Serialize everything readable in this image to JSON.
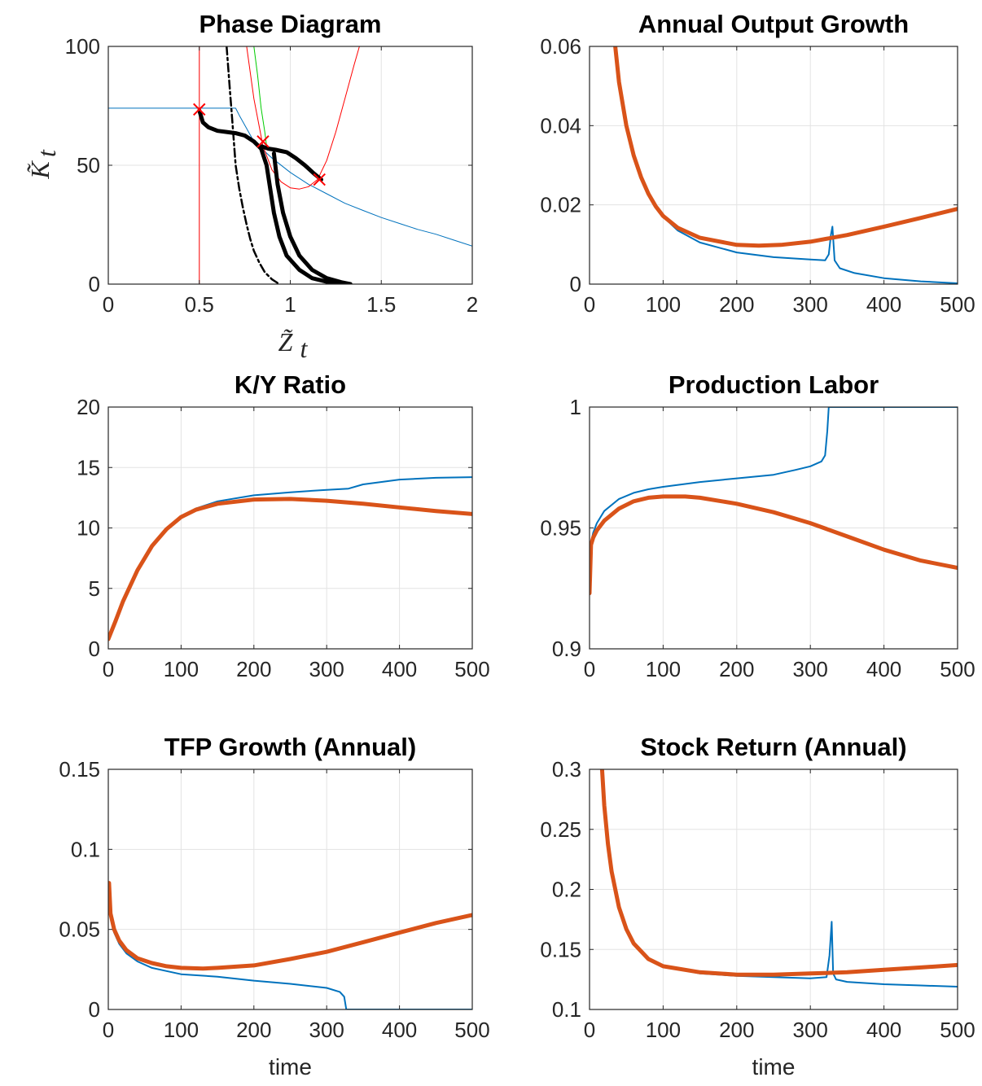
{
  "chart_data": [
    {
      "type": "line",
      "title": "Phase Diagram",
      "xlabel": "Z̃",
      "xlabel_sub": "t",
      "ylabel": "K̃",
      "ylabel_sub": "t",
      "xlim": [
        0,
        2
      ],
      "ylim": [
        0,
        100
      ],
      "xticks": [
        0,
        0.5,
        1,
        1.5,
        2
      ],
      "xtick_labels": [
        "0",
        "0.5",
        "1",
        "1.5",
        "2"
      ],
      "yticks": [
        0,
        50,
        100
      ],
      "ytick_labels": [
        "0",
        "50",
        "100"
      ],
      "grid": true,
      "series": [
        {
          "color": "#0072BD",
          "width": 1,
          "dash": "",
          "x": [
            0,
            0.2,
            0.4,
            0.5,
            0.6,
            0.7,
            0.72,
            0.8,
            0.9,
            1.0,
            1.1,
            1.2,
            1.3,
            1.4,
            1.5,
            1.6,
            1.7,
            1.8,
            1.9,
            2.0
          ],
          "y": [
            74,
            74,
            74,
            74,
            74,
            74,
            71,
            60,
            53,
            47,
            42,
            38,
            34,
            31,
            28,
            25.5,
            23,
            21,
            18.5,
            16
          ]
        },
        {
          "color": "#ff0000",
          "width": 1,
          "dash": "",
          "x": [
            0.5,
            0.5
          ],
          "y": [
            0,
            100
          ]
        },
        {
          "color": "#ff0000",
          "width": 1,
          "dash": "",
          "x": [
            0.76,
            0.8,
            0.85,
            0.9,
            0.95,
            1.0,
            1.05,
            1.1,
            1.15,
            1.2,
            1.25,
            1.3,
            1.35,
            1.38
          ],
          "y": [
            100,
            78,
            58,
            48,
            43,
            40.5,
            40,
            41,
            44,
            52,
            64,
            78,
            92,
            100
          ]
        },
        {
          "color": "#00cc00",
          "width": 1,
          "dash": "",
          "x": [
            0.8,
            0.82,
            0.84,
            0.86,
            0.87
          ],
          "y": [
            100,
            88,
            74,
            64,
            58
          ]
        },
        {
          "color": "#000000",
          "width": 2.5,
          "dash": "10,4,3,4",
          "x": [
            0.65,
            0.66,
            0.67,
            0.68,
            0.69,
            0.7,
            0.72,
            0.74,
            0.76,
            0.78,
            0.8,
            0.83,
            0.86,
            0.9,
            0.94
          ],
          "y": [
            100,
            90,
            80,
            70,
            60,
            50,
            40,
            32,
            25,
            19,
            14,
            9,
            5,
            2,
            0
          ]
        },
        {
          "color": "#000000",
          "width": 5,
          "dash": "",
          "x": [
            0.5,
            0.52,
            0.55,
            0.6,
            0.65,
            0.7,
            0.75,
            0.8,
            0.84,
            0.87,
            0.89,
            0.91,
            0.94,
            0.98,
            1.05,
            1.12,
            1.2,
            1.28,
            1.33
          ],
          "y": [
            73,
            68,
            66,
            64.5,
            64,
            63.5,
            62.5,
            60,
            57,
            50,
            40,
            30,
            20,
            12,
            6,
            2.5,
            1,
            0.3,
            0
          ]
        },
        {
          "color": "#000000",
          "width": 5,
          "dash": "",
          "x": [
            0.84,
            0.88,
            0.92,
            0.95,
            0.98,
            1.03,
            1.08,
            1.13,
            1.17
          ],
          "y": [
            58,
            57,
            56.5,
            56,
            55.5,
            53,
            50,
            46.5,
            44
          ]
        },
        {
          "color": "#000000",
          "width": 5,
          "dash": "",
          "x": [
            0.91,
            0.93,
            0.96,
            1.0,
            1.05,
            1.12,
            1.2,
            1.28,
            1.33
          ],
          "y": [
            55,
            42,
            30,
            20,
            12,
            6,
            2.5,
            0.8,
            0
          ]
        }
      ],
      "markers": {
        "symbol": "x",
        "color": "#ff0000",
        "x": [
          0.5,
          0.85,
          1.16
        ],
        "y": [
          73.5,
          60,
          44
        ]
      }
    },
    {
      "type": "line",
      "title": "Annual Output Growth",
      "xlim": [
        0,
        500
      ],
      "ylim": [
        0,
        0.06
      ],
      "xticks": [
        0,
        100,
        200,
        300,
        400,
        500
      ],
      "xtick_labels": [
        "0",
        "100",
        "200",
        "300",
        "400",
        "500"
      ],
      "yticks": [
        0,
        0.02,
        0.04,
        0.06
      ],
      "ytick_labels": [
        "0",
        "0.02",
        "0.04",
        "0.06"
      ],
      "grid": true,
      "series": [
        {
          "color": "#0072BD",
          "width": 2,
          "x": [
            35,
            40,
            50,
            60,
            70,
            80,
            90,
            100,
            120,
            150,
            200,
            250,
            300,
            320,
            325,
            328,
            330,
            333,
            340,
            360,
            400,
            450,
            500
          ],
          "y": [
            0.06,
            0.051,
            0.04,
            0.0325,
            0.027,
            0.0228,
            0.0195,
            0.017,
            0.0135,
            0.0105,
            0.008,
            0.0068,
            0.0062,
            0.006,
            0.0075,
            0.0125,
            0.0145,
            0.006,
            0.004,
            0.0028,
            0.0015,
            0.0007,
            0.0002
          ]
        },
        {
          "color": "#D95319",
          "width": 5,
          "x": [
            35,
            40,
            50,
            60,
            70,
            80,
            90,
            100,
            120,
            150,
            200,
            230,
            260,
            300,
            350,
            400,
            450,
            500
          ],
          "y": [
            0.06,
            0.051,
            0.04,
            0.0325,
            0.027,
            0.0228,
            0.0196,
            0.0172,
            0.0142,
            0.0117,
            0.0099,
            0.0097,
            0.0099,
            0.0107,
            0.0124,
            0.0145,
            0.0167,
            0.019
          ]
        }
      ]
    },
    {
      "type": "line",
      "title": "K/Y Ratio",
      "xlim": [
        0,
        500
      ],
      "ylim": [
        0,
        20
      ],
      "xticks": [
        0,
        100,
        200,
        300,
        400,
        500
      ],
      "xtick_labels": [
        "0",
        "100",
        "200",
        "300",
        "400",
        "500"
      ],
      "yticks": [
        0,
        5,
        10,
        15,
        20
      ],
      "ytick_labels": [
        "0",
        "5",
        "10",
        "15",
        "20"
      ],
      "grid": true,
      "series": [
        {
          "color": "#0072BD",
          "width": 2,
          "x": [
            0,
            10,
            20,
            40,
            60,
            80,
            100,
            120,
            150,
            200,
            250,
            300,
            330,
            350,
            400,
            450,
            500
          ],
          "y": [
            0.8,
            2.3,
            3.9,
            6.5,
            8.5,
            9.9,
            10.9,
            11.6,
            12.2,
            12.7,
            12.95,
            13.15,
            13.25,
            13.6,
            14,
            14.15,
            14.2
          ]
        },
        {
          "color": "#D95319",
          "width": 5,
          "x": [
            0,
            10,
            20,
            40,
            60,
            80,
            100,
            120,
            150,
            200,
            250,
            300,
            350,
            400,
            450,
            500
          ],
          "y": [
            0.8,
            2.3,
            3.9,
            6.5,
            8.5,
            9.9,
            10.9,
            11.5,
            12.0,
            12.35,
            12.4,
            12.25,
            12.0,
            11.7,
            11.4,
            11.15
          ]
        }
      ]
    },
    {
      "type": "line",
      "title": "Production Labor",
      "xlim": [
        0,
        500
      ],
      "ylim": [
        0.9,
        1
      ],
      "xticks": [
        0,
        100,
        200,
        300,
        400,
        500
      ],
      "xtick_labels": [
        "0",
        "100",
        "200",
        "300",
        "400",
        "500"
      ],
      "yticks": [
        0.9,
        0.95,
        1
      ],
      "ytick_labels": [
        "0.9",
        "0.95",
        "1"
      ],
      "grid": true,
      "series": [
        {
          "color": "#0072BD",
          "width": 2,
          "x": [
            0,
            2,
            5,
            10,
            20,
            40,
            60,
            80,
            100,
            150,
            200,
            250,
            280,
            300,
            315,
            320,
            323,
            325,
            327,
            400,
            500
          ],
          "y": [
            0.924,
            0.944,
            0.948,
            0.952,
            0.957,
            0.962,
            0.9645,
            0.966,
            0.967,
            0.969,
            0.9705,
            0.972,
            0.974,
            0.9755,
            0.9775,
            0.98,
            0.99,
            1.0,
            1.0,
            1.0,
            1.0
          ]
        },
        {
          "color": "#D95319",
          "width": 5,
          "x": [
            0,
            2,
            5,
            10,
            20,
            40,
            60,
            80,
            100,
            130,
            150,
            200,
            250,
            300,
            350,
            400,
            450,
            500
          ],
          "y": [
            0.923,
            0.943,
            0.946,
            0.949,
            0.953,
            0.958,
            0.961,
            0.9625,
            0.963,
            0.963,
            0.9625,
            0.96,
            0.9565,
            0.952,
            0.9465,
            0.941,
            0.9365,
            0.9335
          ]
        }
      ]
    },
    {
      "type": "line",
      "title": "TFP Growth (Annual)",
      "xlabel": "time",
      "xlim": [
        0,
        500
      ],
      "ylim": [
        0,
        0.15
      ],
      "xticks": [
        0,
        100,
        200,
        300,
        400,
        500
      ],
      "xtick_labels": [
        "0",
        "100",
        "200",
        "300",
        "400",
        "500"
      ],
      "yticks": [
        0,
        0.05,
        0.1,
        0.15
      ],
      "ytick_labels": [
        "0",
        "0.05",
        "0.1",
        "0.15"
      ],
      "grid": true,
      "series": [
        {
          "color": "#0072BD",
          "width": 2,
          "x": [
            1,
            3,
            8,
            15,
            25,
            40,
            60,
            80,
            100,
            150,
            200,
            250,
            300,
            318,
            324,
            327,
            330,
            400,
            500
          ],
          "y": [
            0.075,
            0.058,
            0.048,
            0.041,
            0.035,
            0.03,
            0.026,
            0.024,
            0.022,
            0.0205,
            0.018,
            0.016,
            0.0135,
            0.011,
            0.008,
            0.0,
            0.0,
            0.0,
            0.0
          ]
        },
        {
          "color": "#D95319",
          "width": 5,
          "x": [
            1,
            3,
            8,
            15,
            25,
            40,
            60,
            80,
            100,
            130,
            150,
            200,
            250,
            300,
            350,
            400,
            450,
            500
          ],
          "y": [
            0.079,
            0.06,
            0.05,
            0.043,
            0.037,
            0.032,
            0.029,
            0.027,
            0.026,
            0.0255,
            0.026,
            0.0275,
            0.0315,
            0.036,
            0.042,
            0.048,
            0.054,
            0.059
          ]
        }
      ]
    },
    {
      "type": "line",
      "title": "Stock Return (Annual)",
      "xlabel": "time",
      "xlim": [
        0,
        500
      ],
      "ylim": [
        0.1,
        0.3
      ],
      "xticks": [
        0,
        100,
        200,
        300,
        400,
        500
      ],
      "xtick_labels": [
        "0",
        "100",
        "200",
        "300",
        "400",
        "500"
      ],
      "yticks": [
        0.1,
        0.15,
        0.2,
        0.25,
        0.3
      ],
      "ytick_labels": [
        "0.1",
        "0.15",
        "0.2",
        "0.25",
        "0.3"
      ],
      "grid": true,
      "series": [
        {
          "color": "#0072BD",
          "width": 2,
          "x": [
            17,
            20,
            25,
            30,
            40,
            50,
            60,
            80,
            100,
            150,
            200,
            250,
            300,
            322,
            326,
            329,
            331,
            335,
            350,
            400,
            450,
            500
          ],
          "y": [
            0.3,
            0.27,
            0.238,
            0.215,
            0.185,
            0.167,
            0.155,
            0.142,
            0.136,
            0.13,
            0.128,
            0.127,
            0.126,
            0.127,
            0.145,
            0.173,
            0.13,
            0.125,
            0.123,
            0.121,
            0.12,
            0.119
          ]
        },
        {
          "color": "#D95319",
          "width": 5,
          "x": [
            17,
            20,
            25,
            30,
            40,
            50,
            60,
            80,
            100,
            150,
            200,
            250,
            300,
            350,
            400,
            450,
            500
          ],
          "y": [
            0.3,
            0.27,
            0.238,
            0.215,
            0.185,
            0.167,
            0.155,
            0.142,
            0.136,
            0.131,
            0.129,
            0.129,
            0.13,
            0.131,
            0.133,
            0.135,
            0.137
          ]
        }
      ]
    }
  ]
}
